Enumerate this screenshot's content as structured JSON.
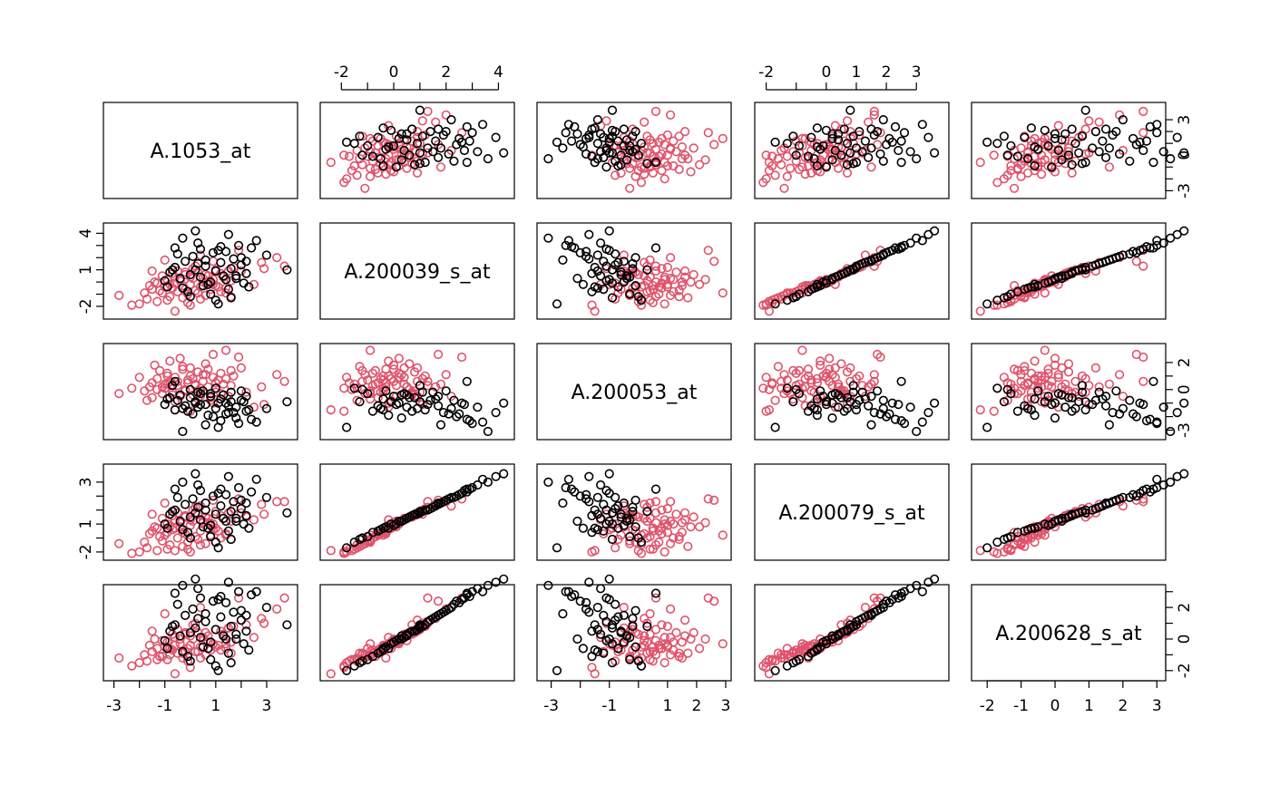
{
  "chart_data": {
    "type": "scatter-matrix",
    "title": "",
    "variables": [
      "A.1053_at",
      "A.200039_s_at",
      "A.200053_at",
      "A.200079_s_at",
      "A.200628_s_at"
    ],
    "group_colors": [
      "#df536b",
      "#000000"
    ],
    "marker": "open-circle",
    "grid": false,
    "axes": [
      {
        "range": [
          -3.2,
          4.0
        ],
        "ticks": [
          -3,
          -2,
          -1,
          0,
          1,
          2,
          3
        ],
        "labels": [
          "-3",
          "",
          "-1",
          "",
          "1",
          "",
          "3"
        ]
      },
      {
        "range": [
          -2.6,
          4.4
        ],
        "ticks": [
          -2,
          -1,
          0,
          1,
          2,
          3,
          4
        ],
        "labels": [
          "-2",
          "",
          "0",
          "",
          "2",
          "",
          "4"
        ]
      },
      {
        "range": [
          -3.3,
          3.0
        ],
        "ticks": [
          -3,
          -2,
          -1,
          0,
          1,
          2,
          3
        ],
        "labels": [
          "-3",
          "",
          "-1",
          "",
          "1",
          "2",
          "3"
        ]
      },
      {
        "range": [
          -2.2,
          3.9
        ],
        "ticks": [
          -2,
          -1,
          0,
          1,
          2,
          3
        ],
        "labels": [
          "-2",
          "",
          "0",
          "1",
          "2",
          "3"
        ]
      },
      {
        "range": [
          -2.3,
          3.1
        ],
        "ticks": [
          -2,
          -1,
          0,
          1,
          2,
          3
        ],
        "labels": [
          "-2",
          "-1",
          "0",
          "1",
          "2",
          "3"
        ]
      }
    ],
    "right_axes": {
      "0": {
        "ticks": [
          -3,
          -2,
          -1,
          0,
          1,
          2,
          3
        ],
        "labels": [
          "-3",
          "",
          "",
          "0",
          "",
          "",
          "3"
        ]
      },
      "2": {
        "ticks": [
          -3,
          -2,
          -1,
          0,
          1,
          2
        ],
        "labels": [
          "-3",
          "",
          "",
          "0",
          "",
          "2"
        ]
      },
      "4": {
        "ticks": [
          -2,
          -1,
          0,
          1,
          2,
          3
        ],
        "labels": [
          "-2",
          "",
          "0",
          "",
          "2",
          ""
        ]
      }
    },
    "left_axes": {
      "1": {
        "ticks": [
          -2,
          -1,
          0,
          1,
          2,
          3,
          4
        ],
        "labels": [
          "-2",
          "",
          "",
          "1",
          "",
          "",
          "4"
        ]
      },
      "3": {
        "ticks": [
          -2,
          -1,
          0,
          1,
          2,
          3
        ],
        "labels": [
          "-2",
          "",
          "1",
          "",
          "",
          "3"
        ]
      }
    },
    "top_axes": [
      1,
      3
    ],
    "bottom_axes": [
      0,
      2,
      4
    ],
    "groups": [
      {
        "color": "#df536b",
        "points": [
          [
            -1.6,
            -0.3,
            0.2,
            -0.7,
            -0.4
          ],
          [
            -1.5,
            -0.6,
            0.5,
            -0.5,
            -0.8
          ],
          [
            -1.3,
            -0.1,
            0.8,
            -0.3,
            -0.6
          ],
          [
            -1.1,
            -0.9,
            -0.3,
            -1.2,
            -1.1
          ],
          [
            -1.0,
            -0.4,
            0.1,
            -0.8,
            -0.5
          ],
          [
            -0.9,
            0.2,
            1.2,
            0.0,
            -0.2
          ],
          [
            -0.8,
            -1.2,
            0.6,
            -1.5,
            -1.0
          ],
          [
            -0.7,
            -0.5,
            -0.2,
            -0.4,
            -0.7
          ],
          [
            -0.6,
            0.4,
            0.9,
            0.3,
            0.1
          ],
          [
            -0.5,
            -0.8,
            0.3,
            -1.0,
            -0.9
          ],
          [
            -0.4,
            0.1,
            -0.5,
            -0.2,
            -0.3
          ],
          [
            -0.3,
            -0.3,
            1.5,
            -0.6,
            -1.2
          ],
          [
            -0.2,
            0.6,
            0.0,
            0.5,
            0.3
          ],
          [
            -0.1,
            -1.0,
            0.7,
            -1.3,
            -0.6
          ],
          [
            0.0,
            -0.2,
            1.0,
            -0.1,
            -0.4
          ],
          [
            0.1,
            0.3,
            -0.4,
            0.2,
            0.0
          ],
          [
            0.2,
            -0.7,
            0.4,
            -0.9,
            -0.8
          ],
          [
            0.3,
            0.8,
            1.3,
            0.7,
            0.4
          ],
          [
            0.4,
            -0.4,
            -0.1,
            -0.5,
            -0.5
          ],
          [
            0.5,
            0.0,
            0.6,
            0.1,
            -0.1
          ],
          [
            0.6,
            -1.1,
            1.1,
            -1.4,
            -1.0
          ],
          [
            0.7,
            0.5,
            0.2,
            0.4,
            0.2
          ],
          [
            0.8,
            -0.6,
            -0.6,
            -0.8,
            -0.7
          ],
          [
            0.9,
            0.2,
            0.9,
            0.0,
            -0.3
          ],
          [
            1.0,
            -0.3,
            0.5,
            -0.3,
            -0.5
          ],
          [
            1.2,
            0.7,
            -0.3,
            0.6,
            0.5
          ],
          [
            1.4,
            -0.5,
            0.8,
            -0.7,
            -0.6
          ],
          [
            1.6,
            0.1,
            0.3,
            0.2,
            -0.2
          ],
          [
            -1.7,
            -1.4,
            -0.8,
            -1.7,
            -1.4
          ],
          [
            -1.4,
            0.0,
            1.8,
            -0.2,
            0.0
          ],
          [
            -1.2,
            -0.7,
            1.4,
            -0.9,
            -1.1
          ],
          [
            -0.9,
            -1.5,
            0.4,
            -1.8,
            -1.3
          ],
          [
            -0.6,
            -0.1,
            -0.9,
            -0.3,
            -0.4
          ],
          [
            -0.3,
            -1.3,
            1.7,
            -1.6,
            -0.9
          ],
          [
            0.0,
            0.4,
            1.6,
            0.3,
            0.2
          ],
          [
            0.3,
            -0.9,
            -0.7,
            -1.1,
            -0.8
          ],
          [
            0.6,
            0.6,
            1.9,
            0.5,
            0.4
          ],
          [
            0.9,
            -0.2,
            -1.0,
            -0.4,
            -0.3
          ],
          [
            1.2,
            -0.8,
            1.2,
            -1.0,
            -0.7
          ],
          [
            1.5,
            0.9,
            -0.5,
            0.8,
            0.7
          ],
          [
            -2.0,
            -1.8,
            0.9,
            -2.0,
            -1.5
          ],
          [
            -1.8,
            -0.9,
            -0.1,
            -1.3,
            -1.0
          ],
          [
            -1.1,
            0.5,
            0.2,
            0.4,
            -0.1
          ],
          [
            -0.8,
            -0.2,
            2.1,
            -0.2,
            -0.6
          ],
          [
            -0.5,
            0.9,
            0.6,
            0.8,
            0.6
          ],
          [
            -0.2,
            -0.6,
            -1.2,
            -0.7,
            -0.8
          ],
          [
            0.1,
            1.1,
            0.8,
            1.0,
            0.9
          ],
          [
            0.4,
            -1.4,
            0.1,
            -1.5,
            -1.2
          ],
          [
            0.7,
            0.0,
            1.5,
            0.1,
            -0.2
          ],
          [
            1.0,
            1.0,
            -0.2,
            0.9,
            0.6
          ],
          [
            -1.3,
            -1.6,
            0.0,
            -1.9,
            -1.3
          ],
          [
            -0.7,
            0.7,
            -0.4,
            0.6,
            0.3
          ],
          [
            -0.1,
            -1.7,
            0.5,
            -1.8,
            -1.4
          ],
          [
            0.5,
            0.3,
            1.1,
            0.2,
            0.1
          ],
          [
            1.1,
            -0.4,
            0.7,
            -0.5,
            -0.4
          ],
          [
            -0.4,
            0.2,
            2.3,
            0.1,
            0.0
          ],
          [
            0.2,
            1.3,
            0.3,
            1.2,
            1.0
          ],
          [
            0.8,
            -0.1,
            -0.8,
            0.0,
            -0.2
          ],
          [
            -0.9,
            -0.4,
            1.0,
            -0.6,
            -0.5
          ],
          [
            -0.2,
            0.8,
            -0.1,
            0.6,
            0.4
          ],
          [
            1.3,
            0.4,
            0.4,
            0.4,
            0.3
          ],
          [
            1.7,
            1.2,
            1.0,
            1.1,
            0.8
          ],
          [
            2.2,
            0.7,
            -0.2,
            0.5,
            0.9
          ],
          [
            2.8,
            1.6,
            0.2,
            1.4,
            1.3
          ],
          [
            3.4,
            2.0,
            1.1,
            1.6,
            1.9
          ],
          [
            2.5,
            -0.2,
            -1.3,
            0.3,
            0.1
          ],
          [
            1.9,
            2.6,
            2.4,
            1.8,
            2.6
          ],
          [
            -1.0,
            1.8,
            0.4,
            1.5,
            1.6
          ],
          [
            0.4,
            2.2,
            -0.5,
            1.3,
            2.0
          ],
          [
            -0.6,
            -2.4,
            -1.5,
            -1.9,
            -2.2
          ],
          [
            0.9,
            1.7,
            2.6,
            1.7,
            2.4
          ],
          [
            1.6,
            -1.2,
            1.4,
            -1.1,
            -0.9
          ],
          [
            -1.5,
            0.9,
            -0.6,
            0.7,
            0.5
          ],
          [
            0.0,
            -1.9,
            -1.6,
            -2.0,
            -1.8
          ],
          [
            2.0,
            0.9,
            1.6,
            0.8,
            1.2
          ],
          [
            -2.8,
            -1.1,
            -0.3,
            -1.4,
            -1.2
          ],
          [
            -2.3,
            -1.9,
            0.1,
            -2.1,
            -1.7
          ],
          [
            2.9,
            1.1,
            -1.1,
            0.7,
            1.0
          ],
          [
            3.7,
            1.3,
            0.6,
            1.6,
            2.6
          ],
          [
            1.4,
            -0.9,
            2.9,
            -0.8,
            -0.3
          ]
        ]
      },
      {
        "color": "#000000",
        "points": [
          [
            0.0,
            0.6,
            -0.6,
            0.5,
            0.4
          ],
          [
            0.2,
            1.0,
            -0.9,
            0.8,
            0.7
          ],
          [
            0.4,
            0.4,
            -0.3,
            0.3,
            0.1
          ],
          [
            0.6,
            1.3,
            -1.1,
            1.0,
            1.1
          ],
          [
            0.8,
            0.0,
            -0.5,
            -0.1,
            -0.2
          ],
          [
            1.0,
            0.9,
            -1.4,
            0.7,
            0.6
          ],
          [
            1.2,
            1.6,
            -0.7,
            1.3,
            1.4
          ],
          [
            1.4,
            0.2,
            -1.0,
            0.2,
            0.0
          ],
          [
            1.6,
            1.1,
            -0.2,
            0.9,
            0.8
          ],
          [
            1.8,
            0.5,
            -1.3,
            0.4,
            0.3
          ],
          [
            2.0,
            1.4,
            -0.8,
            1.1,
            1.2
          ],
          [
            2.2,
            0.7,
            -1.6,
            0.6,
            0.5
          ],
          [
            -0.2,
            1.7,
            -1.2,
            1.4,
            1.5
          ],
          [
            -0.4,
            0.3,
            -0.4,
            0.2,
            0.2
          ],
          [
            -0.6,
            1.2,
            -1.5,
            1.0,
            0.9
          ],
          [
            -0.8,
            0.8,
            -0.6,
            0.7,
            0.5
          ],
          [
            -1.0,
            0.1,
            -1.1,
            0.0,
            -0.1
          ],
          [
            0.1,
            2.1,
            -1.8,
            1.8,
            1.9
          ],
          [
            0.5,
            -0.3,
            -0.1,
            -0.2,
            -0.5
          ],
          [
            0.9,
            2.4,
            -2.0,
            2.0,
            2.4
          ],
          [
            1.3,
            0.5,
            -0.4,
            0.4,
            0.2
          ],
          [
            1.7,
            1.9,
            -1.7,
            1.6,
            1.7
          ],
          [
            2.1,
            -0.1,
            -0.9,
            0.0,
            -0.3
          ],
          [
            2.4,
            2.8,
            -2.2,
            2.3,
            2.8
          ],
          [
            -0.3,
            -0.5,
            -1.4,
            -0.4,
            -0.8
          ],
          [
            0.3,
            1.5,
            -0.2,
            1.2,
            1.3
          ],
          [
            0.7,
            -0.2,
            -1.9,
            -0.3,
            -0.6
          ],
          [
            1.1,
            2.6,
            -1.0,
            2.2,
            2.5
          ],
          [
            1.5,
            -0.6,
            -1.2,
            -0.5,
            -0.9
          ],
          [
            1.9,
            3.0,
            -2.5,
            2.6,
            3.0
          ],
          [
            -0.5,
            2.3,
            -0.8,
            1.9,
            2.2
          ],
          [
            -0.1,
            -0.8,
            -1.6,
            -0.6,
            -1.1
          ],
          [
            0.3,
            3.2,
            -1.3,
            2.8,
            3.2
          ],
          [
            0.8,
            -1.0,
            -0.3,
            -0.9,
            -1.3
          ],
          [
            1.2,
            2.9,
            -2.3,
            2.5,
            2.7
          ],
          [
            1.6,
            -1.3,
            -0.9,
            -1.1,
            -1.5
          ],
          [
            2.0,
            2.0,
            -0.1,
            1.7,
            1.8
          ],
          [
            2.3,
            -0.4,
            -1.5,
            -0.3,
            -0.7
          ],
          [
            -0.7,
            1.0,
            0.3,
            0.9,
            0.8
          ],
          [
            -0.9,
            -0.4,
            -0.7,
            -0.3,
            -0.6
          ],
          [
            0.6,
            1.8,
            -2.6,
            1.5,
            1.6
          ],
          [
            1.0,
            -1.5,
            0.1,
            -1.3,
            -1.7
          ],
          [
            1.4,
            2.5,
            -1.8,
            2.1,
            2.3
          ],
          [
            1.8,
            0.3,
            -2.1,
            0.2,
            0.0
          ],
          [
            2.2,
            1.7,
            -0.5,
            1.5,
            1.5
          ],
          [
            0.0,
            -1.2,
            0.0,
            -1.0,
            -1.4
          ],
          [
            0.4,
            2.7,
            -1.1,
            2.4,
            2.6
          ],
          [
            3.0,
            2.2,
            -1.4,
            1.9,
            2.0
          ],
          [
            3.8,
            1.0,
            -0.9,
            0.8,
            0.9
          ],
          [
            -0.3,
            3.6,
            -3.1,
            3.0,
            3.4
          ],
          [
            1.5,
            3.9,
            -1.7,
            3.4,
            3.6
          ],
          [
            2.6,
            3.4,
            -2.4,
            3.2,
            3.0
          ],
          [
            -0.6,
            2.8,
            0.6,
            2.5,
            2.9
          ],
          [
            1.1,
            -1.8,
            -2.8,
            -1.7,
            -2.0
          ],
          [
            0.2,
            4.2,
            -1.0,
            3.6,
            3.8
          ]
        ]
      }
    ]
  }
}
